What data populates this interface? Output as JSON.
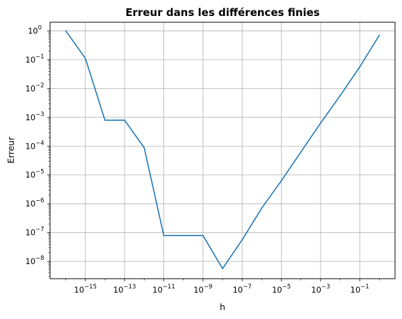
{
  "chart_data": {
    "type": "line",
    "title": "Erreur dans les différences finies",
    "xlabel": "h",
    "ylabel": "Erreur",
    "xscale": "log",
    "yscale": "log",
    "grid": true,
    "xlim_log10": [
      -16.8,
      0.8
    ],
    "ylim_log10": [
      -8.6,
      0.3
    ],
    "x_ticks_log10": [
      -15,
      -13,
      -11,
      -9,
      -7,
      -5,
      -3,
      -1
    ],
    "y_ticks_log10": [
      0,
      -1,
      -2,
      -3,
      -4,
      -5,
      -6,
      -7,
      -8
    ],
    "series": [
      {
        "color": "#1f77b4",
        "x_log10": [
          -16,
          -15,
          -14,
          -13,
          -12,
          -11,
          -10,
          -9,
          -8,
          -7,
          -6,
          -5,
          -4,
          -3,
          -2,
          -1,
          0
        ],
        "y_log10": [
          0.0,
          -0.95,
          -3.1,
          -3.1,
          -4.05,
          -7.1,
          -7.1,
          -7.1,
          -8.25,
          -7.25,
          -6.15,
          -5.2,
          -4.2,
          -3.2,
          -2.25,
          -1.25,
          -0.15
        ]
      }
    ]
  }
}
